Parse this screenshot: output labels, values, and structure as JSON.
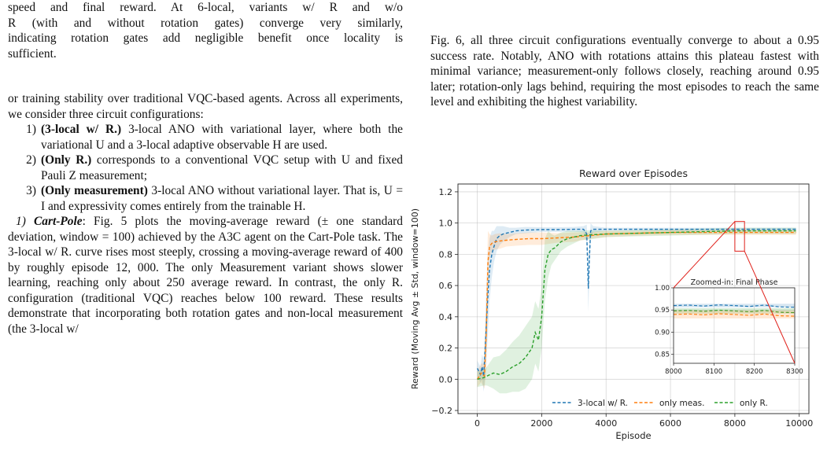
{
  "left_column": {
    "caption_lines": [
      "speed and final reward. At 6-local, variants w/ R and w/o",
      "R (with and without rotation gates) converge very similarly,",
      "indicating rotation gates add negligible benefit once locality is",
      "sufficient."
    ],
    "intro": "or training stability over traditional VQC-based agents. Across all experiments, we consider three circuit configurations:",
    "configs": [
      {
        "num": "1)",
        "title": "(3-local w/ R.)",
        "text": " 3-local ANO with variational layer, where both the variational U and a 3-local adaptive observable H are used."
      },
      {
        "num": "2)",
        "title": "(Only R.)",
        "text": " corresponds to a conventional VQC setup with U and fixed Pauli Z measurement;"
      },
      {
        "num": "3)",
        "title": "(Only measurement)",
        "text": " 3-local ANO without variational layer. That is, U = I and expressivity comes entirely from the trainable H."
      }
    ],
    "section_num": "1)",
    "section_title": "Cart-Pole",
    "section_text": ": Fig. 5 plots the moving-average reward (± one standard deviation, window = 100) achieved by the A3C agent on the Cart-Pole task. The 3-local w/ R. curve rises most steeply, crossing a moving-average reward of 400 by roughly episode 12, 000. The only Measurement variant shows slower learning, reaching only about 250 average reward. In contrast, the only R. configuration (traditional VQC) reaches below 100 reward. These results demonstrate that incorporating both rotation gates and non-local measurement (the 3-local w/"
  },
  "right_column": {
    "text": "Fig. 6, all three circuit configurations eventually converge to about a 0.95 success rate. Notably, ANO with rotations attains this plateau fastest with minimal variance; measurement-only follows closely, reaching around 0.95 later; rotation-only lags behind, requiring the most episodes to reach the same level and exhibiting the highest variability."
  },
  "chart_data": {
    "type": "line",
    "title": "Reward over Episodes",
    "xlabel": "Episode",
    "ylabel": "Reward (Moving Avg ± Std, window=100)",
    "xlim": [
      -600,
      10300
    ],
    "ylim": [
      -0.22,
      1.25
    ],
    "xticks": [
      "0",
      "2000",
      "4000",
      "6000",
      "8000",
      "10000"
    ],
    "yticks": [
      "−0.2",
      "0.0",
      "0.2",
      "0.4",
      "0.6",
      "0.8",
      "1.0",
      "1.2"
    ],
    "grid": true,
    "legend": "bottom",
    "series": [
      {
        "name": "3-local w/ R.",
        "color": "#1f77b4",
        "x": [
          0,
          100,
          150,
          200,
          260,
          320,
          380,
          450,
          520,
          600,
          700,
          800,
          900,
          1000,
          1200,
          1500,
          2000,
          2500,
          3000,
          3300,
          3400,
          3450,
          3480,
          3520,
          3600,
          4000,
          5000,
          6000,
          7000,
          8000,
          9000,
          9900
        ],
        "y": [
          0.07,
          0.03,
          0.08,
          0.02,
          0.25,
          0.5,
          0.7,
          0.8,
          0.85,
          0.9,
          0.92,
          0.93,
          0.935,
          0.94,
          0.95,
          0.955,
          0.958,
          0.958,
          0.96,
          0.96,
          0.93,
          0.58,
          0.76,
          0.95,
          0.96,
          0.96,
          0.96,
          0.96,
          0.96,
          0.96,
          0.96,
          0.96
        ],
        "std": [
          0.05,
          0.05,
          0.08,
          0.1,
          0.2,
          0.25,
          0.2,
          0.15,
          0.1,
          0.08,
          0.06,
          0.05,
          0.04,
          0.03,
          0.02,
          0.02,
          0.015,
          0.015,
          0.015,
          0.02,
          0.06,
          0.15,
          0.12,
          0.05,
          0.02,
          0.01,
          0.01,
          0.01,
          0.01,
          0.01,
          0.01,
          0.01
        ]
      },
      {
        "name": "only meas.",
        "color": "#ff7f0e",
        "x": [
          0,
          120,
          220,
          280,
          330,
          380,
          450,
          550,
          700,
          900,
          1200,
          1600,
          2000,
          2500,
          3000,
          3500,
          4000,
          5000,
          6000,
          7000,
          8000,
          9000,
          9900
        ],
        "y": [
          0.0,
          0.04,
          0.02,
          0.3,
          0.75,
          0.85,
          0.87,
          0.88,
          0.885,
          0.89,
          0.895,
          0.9,
          0.9,
          0.905,
          0.91,
          0.92,
          0.93,
          0.935,
          0.94,
          0.94,
          0.94,
          0.94,
          0.94
        ],
        "std": [
          0.05,
          0.06,
          0.08,
          0.25,
          0.2,
          0.08,
          0.05,
          0.05,
          0.05,
          0.04,
          0.04,
          0.04,
          0.04,
          0.03,
          0.03,
          0.02,
          0.02,
          0.015,
          0.015,
          0.015,
          0.015,
          0.015,
          0.015
        ]
      },
      {
        "name": "only R.",
        "color": "#2ca02c",
        "x": [
          0,
          200,
          300,
          500,
          700,
          900,
          1100,
          1300,
          1500,
          1700,
          1800,
          1900,
          2000,
          2100,
          2200,
          2300,
          2400,
          2600,
          2800,
          3000,
          3200,
          3500,
          4000,
          5000,
          6000,
          7000,
          8000,
          9000,
          9900
        ],
        "y": [
          0.0,
          0.01,
          0.02,
          0.04,
          0.03,
          0.05,
          0.08,
          0.1,
          0.14,
          0.2,
          0.3,
          0.25,
          0.4,
          0.7,
          0.8,
          0.83,
          0.84,
          0.88,
          0.9,
          0.91,
          0.92,
          0.925,
          0.93,
          0.935,
          0.94,
          0.945,
          0.95,
          0.95,
          0.95
        ],
        "std": [
          0.05,
          0.05,
          0.06,
          0.1,
          0.12,
          0.14,
          0.16,
          0.18,
          0.2,
          0.2,
          0.2,
          0.2,
          0.2,
          0.2,
          0.15,
          0.1,
          0.08,
          0.06,
          0.05,
          0.04,
          0.03,
          0.03,
          0.02,
          0.02,
          0.02,
          0.02,
          0.02,
          0.02,
          0.02
        ]
      }
    ],
    "inset": {
      "title": "Zoomed-in: Final Phase",
      "xlim": [
        8000,
        8300
      ],
      "ylim": [
        0.83,
        1.0
      ],
      "xticks": [
        "8000",
        "8100",
        "8200",
        "8300"
      ],
      "yticks": [
        "0.85",
        "0.90",
        "0.95",
        "1.00"
      ],
      "region_x": [
        8000,
        8300
      ],
      "region_y": [
        0.82,
        1.01
      ]
    }
  }
}
